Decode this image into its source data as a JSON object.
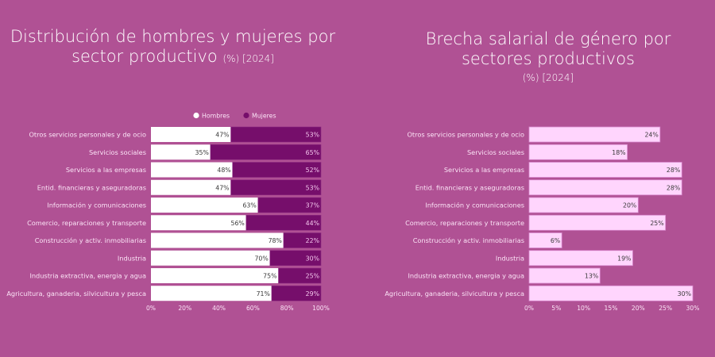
{
  "colors": {
    "background": "#b05194",
    "hombres": "#ffffff",
    "mujeres": "#760e6b",
    "brecha": "#ffd5fd",
    "brecha_border": "#d989cf",
    "value_dark": "#3a3a3a",
    "value_light": "#ffffff"
  },
  "chart_data": [
    {
      "type": "bar",
      "orientation": "horizontal",
      "stacked": true,
      "title": "Distribución de hombres y mujeres por sector productivo",
      "subtitle": "(%) [2024]",
      "xlabel": "",
      "ylabel": "",
      "xlim": [
        0,
        100
      ],
      "xticks": [
        "0%",
        "20%",
        "40%",
        "60%",
        "80%",
        "100%"
      ],
      "legend_position": "top",
      "categories": [
        "Otros servicios personales y de ocio",
        "Servicios sociales",
        "Servicios a las empresas",
        "Entid. financieras y aseguradoras",
        "Información y comunicaciones",
        "Comercio, reparaciones y transporte",
        "Construcción y activ. inmobiliarias",
        "Industria",
        "Industria extractiva, energia y agua",
        "Agricultura, ganaderia, silvicultura y pesca"
      ],
      "series": [
        {
          "name": "Hombres",
          "values": [
            47,
            35,
            48,
            47,
            63,
            56,
            78,
            70,
            75,
            71
          ]
        },
        {
          "name": "Mujeres",
          "values": [
            53,
            65,
            52,
            53,
            37,
            44,
            22,
            30,
            25,
            29
          ]
        }
      ]
    },
    {
      "type": "bar",
      "orientation": "horizontal",
      "stacked": false,
      "title": "Brecha salarial de género por sectores productivos",
      "subtitle": "(%) [2024]",
      "xlabel": "",
      "ylabel": "",
      "xlim": [
        0,
        30
      ],
      "xticks": [
        "0%",
        "5%",
        "10%",
        "15%",
        "20%",
        "25%",
        "30%"
      ],
      "categories": [
        "Otros servicios personales y de ocio",
        "Servicios sociales",
        "Servicios a las empresas",
        "Entid. financieras y aseguradoras",
        "Información y comunicaciones",
        "Comercio, reparaciones y transporte",
        "Construcción y activ. inmobiliarias",
        "Industria",
        "Industria extractiva, energia y agua",
        "Agricultura, ganaderia, silvicultura y pesca"
      ],
      "values": [
        24,
        18,
        28,
        28,
        20,
        25,
        6,
        19,
        13,
        30
      ]
    }
  ],
  "titles": {
    "left_main": "Distribución de hombres y mujeres por",
    "left_main2": "sector productivo",
    "left_sub": "(%) [2024]",
    "right_main": "Brecha salarial de género por",
    "right_main2": "sectores productivos",
    "right_sub": "(%) [2024]"
  }
}
